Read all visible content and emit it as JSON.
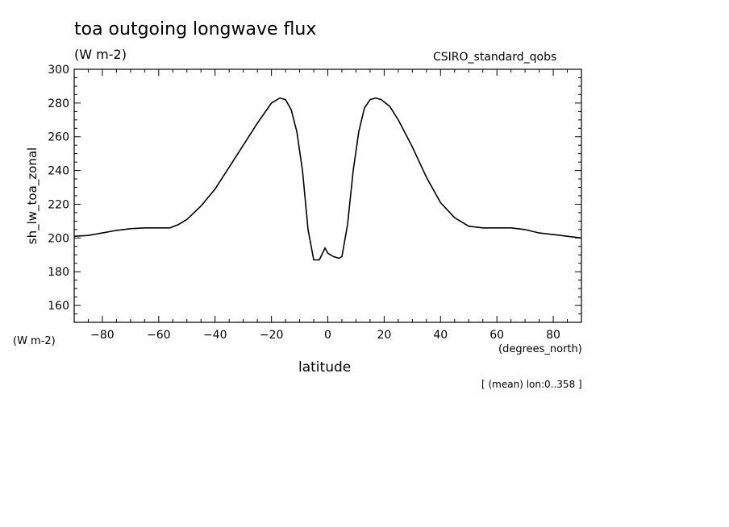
{
  "chart_data": {
    "type": "line",
    "title": "toa outgoing longwave flux",
    "units": "(W m-2)",
    "source": "CSIRO_standard_qobs",
    "ylabel": "sh_lw_toa_zonal",
    "ylabel_units": "(W m-2)",
    "xlabel": "latitude",
    "xlabel_units": "(degrees_north)",
    "note": "[ (mean) lon:0..358 ]",
    "xlim": [
      -90,
      90
    ],
    "ylim": [
      150,
      300
    ],
    "xticks": [
      -80,
      -60,
      -40,
      -20,
      0,
      20,
      40,
      60,
      80
    ],
    "yticks": [
      160,
      180,
      200,
      220,
      240,
      260,
      280,
      300
    ],
    "grid": false,
    "series": [
      {
        "x": [
          -90,
          -85,
          -80,
          -75,
          -70,
          -65,
          -60,
          -56,
          -53,
          -50,
          -45,
          -40,
          -35,
          -30,
          -25,
          -20,
          -17,
          -15,
          -13,
          -11,
          -9,
          -7,
          -5,
          -3,
          -1,
          0,
          1,
          2,
          4,
          5,
          7,
          9,
          11,
          13,
          15,
          17,
          19,
          22,
          25,
          30,
          35,
          40,
          45,
          50,
          55,
          60,
          65,
          70,
          75,
          80,
          85,
          90
        ],
        "y": [
          201,
          201.5,
          203,
          204.5,
          205.5,
          206,
          206,
          206,
          208,
          211,
          219,
          229,
          242,
          255,
          268,
          280,
          283,
          282,
          276,
          263,
          240,
          205,
          187,
          187,
          194,
          191,
          190,
          189,
          188,
          189,
          208,
          240,
          263,
          277,
          282,
          283,
          282,
          278,
          270,
          254,
          236,
          221,
          212,
          207,
          206,
          206,
          206,
          205,
          203,
          202,
          201,
          200
        ]
      }
    ]
  }
}
